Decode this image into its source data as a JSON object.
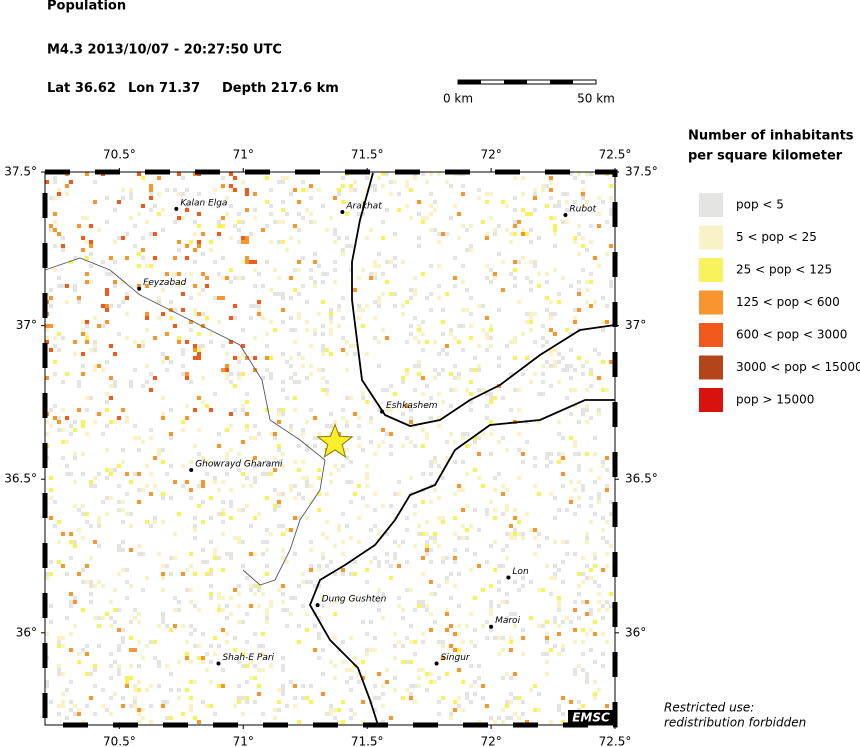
{
  "header": {
    "title": "Population",
    "event": "M4.3  2013/10/07 - 20:27:50 UTC",
    "lat": {
      "label": "Lat",
      "value": 36.62
    },
    "lon": {
      "label": "Lon",
      "value": 71.37
    },
    "depth": {
      "label": "Depth",
      "value": 217.6,
      "unit": "km"
    }
  },
  "scale_bar": {
    "start": "0 km",
    "end": "50 km"
  },
  "map": {
    "lonlim": [
      70.2,
      72.5
    ],
    "latlim": [
      35.7,
      37.5
    ],
    "lonticks": [
      {
        "value": 70.5,
        "label": "70.5°"
      },
      {
        "value": 71,
        "label": "71°"
      },
      {
        "value": 71.5,
        "label": "71.5°"
      },
      {
        "value": 72,
        "label": "72°"
      },
      {
        "value": 72.5,
        "label": "72.5°"
      }
    ],
    "latticks": [
      {
        "value": 37.5,
        "label": "37.5°"
      },
      {
        "value": 37,
        "label": "37°"
      },
      {
        "value": 36.5,
        "label": "36.5°"
      },
      {
        "value": 36,
        "label": "36°"
      }
    ],
    "places": [
      {
        "name": "Kalan Elga",
        "lon": 70.73,
        "lat": 37.38
      },
      {
        "name": "Arakhat",
        "lon": 71.4,
        "lat": 37.37
      },
      {
        "name": "Rubot",
        "lon": 72.3,
        "lat": 37.36
      },
      {
        "name": "Feyzabad",
        "lon": 70.58,
        "lat": 37.12
      },
      {
        "name": "Eshkashem",
        "lon": 71.56,
        "lat": 36.72
      },
      {
        "name": "Ghowrayd Gharami",
        "lon": 70.79,
        "lat": 36.53
      },
      {
        "name": "Lon",
        "lon": 72.07,
        "lat": 36.18
      },
      {
        "name": "Dung Gushten",
        "lon": 71.3,
        "lat": 36.09
      },
      {
        "name": "Maroi",
        "lon": 72.0,
        "lat": 36.02
      },
      {
        "name": "Shah-E Pari",
        "lon": 70.9,
        "lat": 35.9
      },
      {
        "name": "Singur",
        "lon": 71.78,
        "lat": 35.9
      }
    ],
    "badge": "EMSC"
  },
  "legend": {
    "title": [
      "Number of inhabitants",
      "per square kilometer"
    ],
    "entries": [
      {
        "label": "pop < 5",
        "color": "#e4e4e2"
      },
      {
        "label": "5 < pop < 25",
        "color": "#f7f3c6"
      },
      {
        "label": "25 < pop < 125",
        "color": "#f8f25c"
      },
      {
        "label": "125 < pop < 600",
        "color": "#f7962e"
      },
      {
        "label": "600 < pop < 3000",
        "color": "#f25a1c"
      },
      {
        "label": "3000 < pop < 15000",
        "color": "#b4441a"
      },
      {
        "label": "pop > 15000",
        "color": "#d8120c"
      }
    ]
  },
  "notice": [
    "Restricted use:",
    "redistribution forbidden"
  ]
}
